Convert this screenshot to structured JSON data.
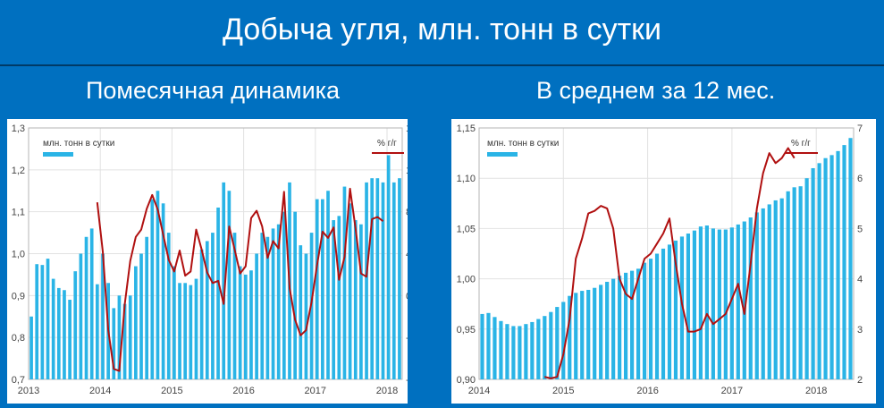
{
  "header": {
    "title": "Добыча угля, млн. тонн в сутки",
    "left_subtitle": "Помесячная динамика",
    "right_subtitle": "В среднем за 12 мес."
  },
  "colors": {
    "background": "#0070c0",
    "bar": "#2ab4e6",
    "line": "#b01010",
    "panel": "#ffffff"
  },
  "chart_data": [
    {
      "type": "bar",
      "legend_bars": "млн. тонн в сутки",
      "legend_line": "% г/г",
      "legend_placement": "top",
      "grid": true,
      "x_tick_labels": [
        "2013",
        "2014",
        "2015",
        "2016",
        "2017",
        "2018"
      ],
      "y_left_ticks": [
        "0,7",
        "0,8",
        "0,9",
        "1,0",
        "1,1",
        "1,2",
        "1,3"
      ],
      "y_right_ticks": [
        "-8",
        "-4",
        "0",
        "4",
        "8",
        "12",
        "16"
      ],
      "ylim_left": [
        0.7,
        1.3
      ],
      "ylim_right": [
        -8,
        16
      ],
      "series": [
        {
          "name": "млн. тонн в сутки",
          "type": "bar",
          "axis": "left",
          "values": [
            0.85,
            0.975,
            0.973,
            0.988,
            0.94,
            0.918,
            0.913,
            0.89,
            0.958,
            1.0,
            1.04,
            1.06,
            0.927,
            1.0,
            0.93,
            0.87,
            0.9,
            0.88,
            0.9,
            0.97,
            1.0,
            1.04,
            1.13,
            1.15,
            1.12,
            1.05,
            0.97,
            0.93,
            0.93,
            0.925,
            0.94,
            1.01,
            1.03,
            1.05,
            1.11,
            1.17,
            1.15,
            1.05,
            0.97,
            0.95,
            0.96,
            1.0,
            1.05,
            1.04,
            1.06,
            1.07,
            1.1,
            1.17,
            1.1,
            1.02,
            1.0,
            1.05,
            1.13,
            1.13,
            1.15,
            1.08,
            1.09,
            1.16,
            1.12,
            1.08,
            1.07,
            1.17,
            1.18,
            1.18,
            1.17,
            1.235,
            1.17,
            1.18
          ]
        },
        {
          "name": "% г/г",
          "type": "line",
          "axis": "right",
          "x_start_index": 12,
          "values": [
            8.9,
            4.2,
            -3.3,
            -7.0,
            -7.2,
            -0.8,
            3.3,
            5.6,
            6.3,
            8.3,
            9.6,
            8.2,
            5.8,
            3.4,
            2.3,
            4.3,
            1.9,
            2.3,
            6.3,
            4.4,
            2.2,
            1.2,
            1.4,
            -0.8,
            6.6,
            4.4,
            2.1,
            2.8,
            7.4,
            8.1,
            6.6,
            3.6,
            5.2,
            4.5,
            9.9,
            0.7,
            -2.3,
            -3.8,
            -3.3,
            -0.6,
            2.9,
            6.1,
            5.5,
            6.5,
            1.5,
            3.7,
            10.2,
            6.4,
            2.1,
            1.8,
            7.3,
            7.5,
            7.1
          ]
        }
      ]
    },
    {
      "type": "bar",
      "legend_bars": "млн. тонн в сутки",
      "legend_line": "% г/г",
      "legend_placement": "top",
      "grid": true,
      "x_tick_labels": [
        "2014",
        "2015",
        "2016",
        "2017",
        "2018"
      ],
      "y_left_ticks": [
        "0,90",
        "0,95",
        "1,00",
        "1,05",
        "1,10",
        "1,15"
      ],
      "y_right_ticks": [
        "2",
        "3",
        "4",
        "5",
        "6",
        "7"
      ],
      "ylim_left": [
        0.9,
        1.15
      ],
      "ylim_right": [
        2,
        7
      ],
      "series": [
        {
          "name": "млн. тонн в сутки",
          "type": "bar",
          "axis": "left",
          "values": [
            0.965,
            0.966,
            0.962,
            0.958,
            0.955,
            0.953,
            0.953,
            0.955,
            0.957,
            0.96,
            0.963,
            0.967,
            0.972,
            0.977,
            0.983,
            0.986,
            0.988,
            0.989,
            0.991,
            0.994,
            0.997,
            1.0,
            1.003,
            1.006,
            1.008,
            1.01,
            1.016,
            1.02,
            1.025,
            1.03,
            1.034,
            1.038,
            1.042,
            1.045,
            1.048,
            1.052,
            1.053,
            1.05,
            1.049,
            1.049,
            1.051,
            1.054,
            1.057,
            1.061,
            1.066,
            1.07,
            1.074,
            1.078,
            1.08,
            1.087,
            1.091,
            1.092,
            1.1,
            1.11,
            1.115,
            1.12,
            1.123,
            1.127,
            1.133,
            1.14
          ]
        },
        {
          "name": "% г/г",
          "type": "line",
          "axis": "right",
          "x_start_index": 10,
          "values": [
            2.05,
            2.02,
            2.05,
            2.5,
            3.2,
            4.4,
            4.8,
            5.3,
            5.35,
            5.45,
            5.4,
            5.0,
            4.0,
            3.7,
            3.6,
            4.0,
            4.4,
            4.5,
            4.7,
            4.9,
            5.2,
            4.3,
            3.5,
            2.95,
            2.95,
            3.0,
            3.3,
            3.1,
            3.2,
            3.3,
            3.6,
            3.9,
            3.3,
            4.3,
            5.4,
            6.1,
            6.5,
            6.3,
            6.4,
            6.6,
            6.4
          ]
        }
      ]
    }
  ]
}
